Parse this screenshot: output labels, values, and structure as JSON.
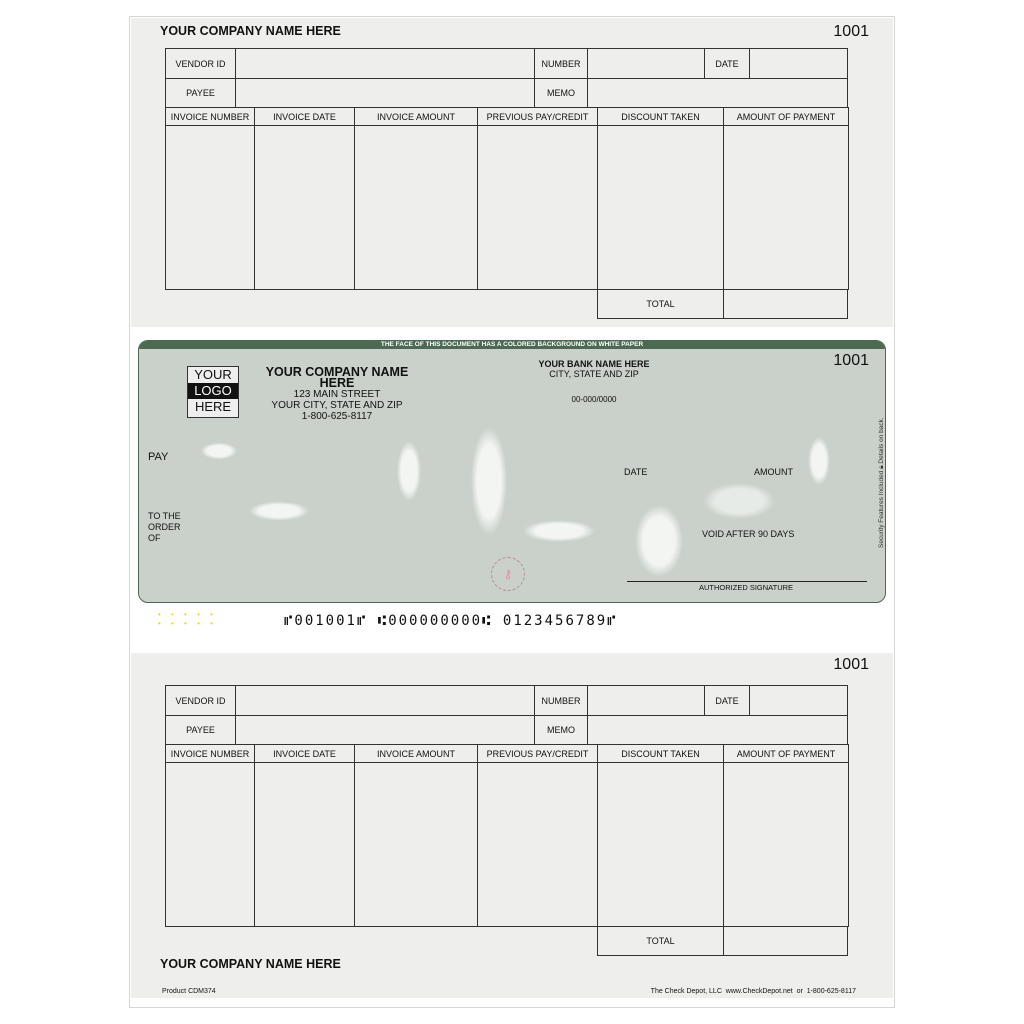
{
  "top_stub": {
    "company": "YOUR COMPANY NAME HERE",
    "check_number": "1001"
  },
  "bottom_stub": {
    "company": "YOUR COMPANY NAME HERE",
    "check_number": "1001"
  },
  "stub_fields": {
    "vendor_id": "VENDOR ID",
    "number": "NUMBER",
    "date": "DATE",
    "payee": "PAYEE",
    "memo": "MEMO",
    "total": "TOTAL"
  },
  "columns": [
    "INVOICE NUMBER",
    "INVOICE DATE",
    "INVOICE AMOUNT",
    "PREVIOUS PAY/CREDIT",
    "DISCOUNT TAKEN",
    "AMOUNT OF PAYMENT"
  ],
  "check": {
    "banner": "THE FACE OF THIS DOCUMENT HAS A COLORED BACKGROUND ON WHITE PAPER",
    "logo": [
      "YOUR",
      "LOGO",
      "HERE"
    ],
    "company": "YOUR COMPANY NAME HERE",
    "address": "123 MAIN STREET",
    "city": "YOUR CITY, STATE AND ZIP",
    "phone": "1-800-625-8117",
    "bank": "YOUR BANK NAME HERE",
    "bank_city": "CITY, STATE AND ZIP",
    "routing_fraction": "00-000/0000",
    "check_number": "1001",
    "pay": "PAY",
    "to_the_order_of": [
      "TO THE",
      "ORDER",
      "OF"
    ],
    "date": "DATE",
    "amount": "AMOUNT",
    "void": "VOID AFTER 90 DAYS",
    "signature": "AUTHORIZED SIGNATURE",
    "security": "Security Features Included",
    "details": "Details on back.",
    "micr": "⑈001001⑈ ⑆000000000⑆ 0123456789⑈",
    "accent": "#4c6a52"
  },
  "footer": {
    "product": "Product CDM374",
    "vendor": "The Check Depot, LLC  www.CheckDepot.net  or  1-800-625-8117"
  }
}
